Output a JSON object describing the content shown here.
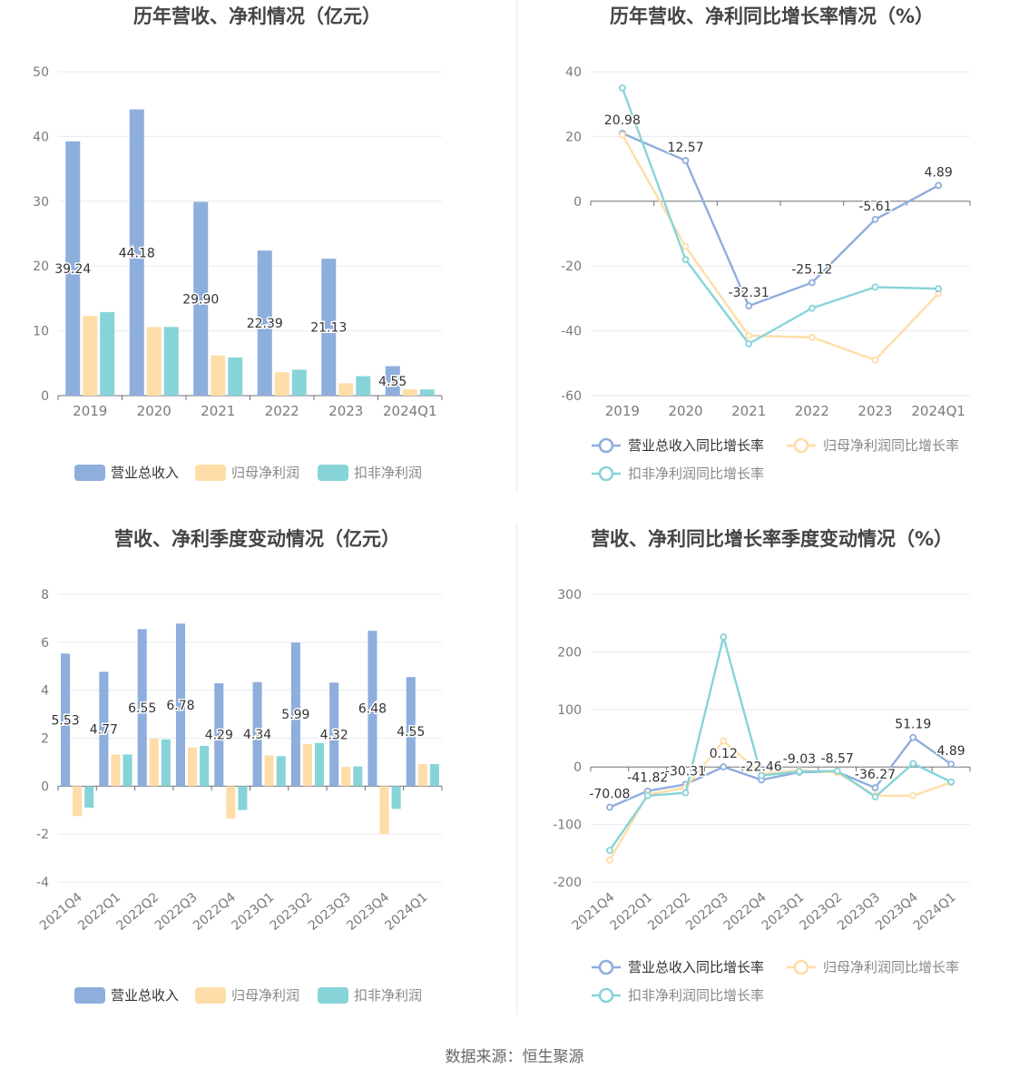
{
  "source_prefix": "数据来源：",
  "source_name": "恒生聚源",
  "colors": {
    "revenue": "#8eaedc",
    "net_profit": "#ffdda8",
    "deducted_profit": "#87d4d8",
    "grid": "#e6e9f2",
    "axis": "#6e7079",
    "label": "#333333"
  },
  "chart_data": [
    {
      "type": "bar",
      "title": "历年营收、净利情况（亿元）",
      "categories": [
        "2019",
        "2020",
        "2021",
        "2022",
        "2023",
        "2024Q1"
      ],
      "ylim": [
        0,
        50
      ],
      "yticks": [
        0,
        10,
        20,
        30,
        40,
        50
      ],
      "series": [
        {
          "name": "营业总收入",
          "values": [
            39.24,
            44.18,
            29.9,
            22.39,
            21.13,
            4.55
          ],
          "labels": [
            "39.24",
            "44.18",
            "29.90",
            "22.39",
            "21.13",
            "4.55"
          ]
        },
        {
          "name": "归母净利润",
          "values": [
            12.3,
            10.6,
            6.2,
            3.6,
            1.9,
            0.95
          ]
        },
        {
          "name": "扣非净利润",
          "values": [
            12.9,
            10.6,
            5.9,
            4.0,
            3.0,
            0.95
          ]
        }
      ],
      "legend_position": "bottom",
      "grid": true
    },
    {
      "type": "line",
      "title": "历年营收、净利同比增长率情况（%）",
      "categories": [
        "2019",
        "2020",
        "2021",
        "2022",
        "2023",
        "2024Q1"
      ],
      "ylim": [
        -60,
        40
      ],
      "yticks": [
        -60,
        -40,
        -20,
        0,
        20,
        40
      ],
      "series": [
        {
          "name": "营业总收入同比增长率",
          "values": [
            20.98,
            12.57,
            -32.31,
            -25.12,
            -5.61,
            4.89
          ],
          "labels": [
            "20.98",
            "12.57",
            "-32.31",
            "-25.12",
            "-5.61",
            "4.89"
          ]
        },
        {
          "name": "归母净利润同比增长率",
          "values": [
            20.5,
            -14.0,
            -41.5,
            -42.0,
            -49.0,
            -28.5
          ]
        },
        {
          "name": "扣非净利润同比增长率",
          "values": [
            35.0,
            -18.0,
            -44.0,
            -33.0,
            -26.5,
            -27.0
          ]
        }
      ],
      "legend_position": "bottom",
      "grid": true
    },
    {
      "type": "bar",
      "title": "营收、净利季度变动情况（亿元）",
      "categories": [
        "2021Q4",
        "2022Q1",
        "2022Q2",
        "2022Q3",
        "2022Q4",
        "2023Q1",
        "2023Q2",
        "2023Q3",
        "2023Q4",
        "2024Q1"
      ],
      "ylim": [
        -4,
        8
      ],
      "yticks": [
        -4,
        -2,
        0,
        2,
        4,
        6,
        8
      ],
      "series": [
        {
          "name": "营业总收入",
          "values": [
            5.53,
            4.77,
            6.55,
            6.78,
            4.29,
            4.34,
            5.99,
            4.32,
            6.48,
            4.55
          ],
          "labels": [
            "5.53",
            "4.77",
            "6.55",
            "6.78",
            "4.29",
            "4.34",
            "5.99",
            "4.32",
            "6.48",
            "4.55"
          ]
        },
        {
          "name": "归母净利润",
          "values": [
            -1.25,
            1.32,
            1.98,
            1.62,
            -1.35,
            1.28,
            1.75,
            0.8,
            -2.0,
            0.92
          ]
        },
        {
          "name": "扣非净利润",
          "values": [
            -0.9,
            1.32,
            1.95,
            1.68,
            -1.0,
            1.25,
            1.8,
            0.82,
            -0.95,
            0.92
          ]
        }
      ],
      "legend_position": "bottom",
      "grid": true
    },
    {
      "type": "line",
      "title": "营收、净利同比增长率季度变动情况（%）",
      "categories": [
        "2021Q4",
        "2022Q1",
        "2022Q2",
        "2022Q3",
        "2022Q4",
        "2023Q1",
        "2023Q2",
        "2023Q3",
        "2023Q4",
        "2024Q1"
      ],
      "ylim": [
        -200,
        300
      ],
      "yticks": [
        -200,
        -100,
        0,
        100,
        200,
        300
      ],
      "series": [
        {
          "name": "营业总收入同比增长率",
          "values": [
            -70.08,
            -41.82,
            -30.31,
            0.12,
            -22.46,
            -9.03,
            -8.57,
            -36.27,
            51.19,
            4.89
          ],
          "labels": [
            "-70.08",
            "-41.82",
            "-30.31",
            "0.12",
            "-22.46",
            "-9.03",
            "-8.57",
            "-36.27",
            "51.19",
            "4.89"
          ]
        },
        {
          "name": "归母净利润同比增长率",
          "values": [
            -162,
            -48,
            -36,
            45,
            -12,
            -6,
            -10,
            -50,
            -50,
            -27
          ]
        },
        {
          "name": "扣非净利润同比增长率",
          "values": [
            -145,
            -50,
            -45,
            226,
            -15,
            -8,
            -7,
            -52,
            6,
            -26
          ]
        }
      ],
      "legend_position": "bottom",
      "grid": true
    }
  ]
}
